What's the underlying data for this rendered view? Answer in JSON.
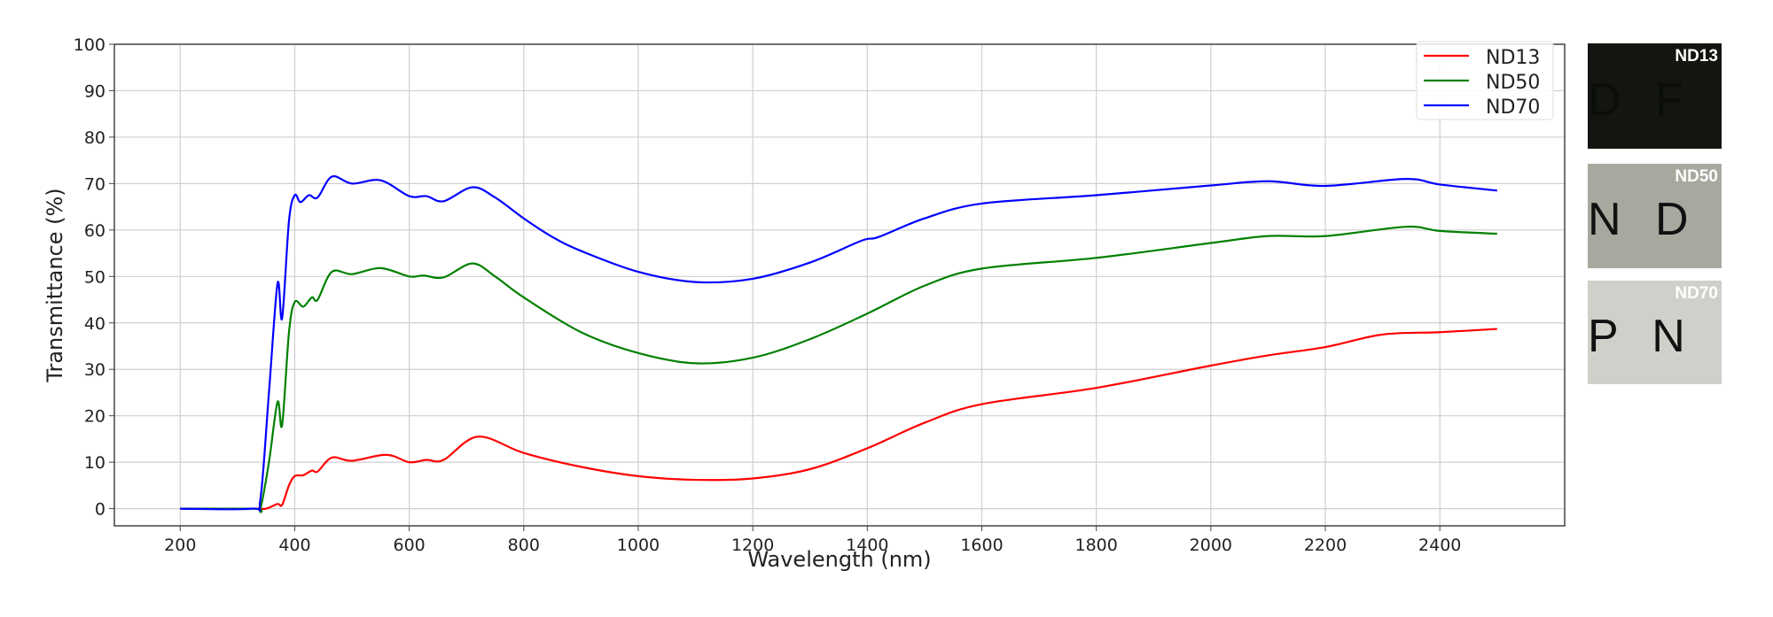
{
  "chart_data": {
    "type": "line",
    "title": "",
    "xlabel": "Wavelength (nm)",
    "ylabel": "Transmittance (%)",
    "xlim": [
      85,
      2618
    ],
    "ylim": [
      -3.7,
      100
    ],
    "xticks": [
      200,
      400,
      600,
      800,
      1000,
      1200,
      1400,
      1600,
      1800,
      2000,
      2200,
      2400
    ],
    "yticks": [
      0,
      10,
      20,
      30,
      40,
      50,
      60,
      70,
      80,
      90,
      100
    ],
    "grid": true,
    "legend_position": "top-right",
    "series": [
      {
        "name": "ND13",
        "color": "#ff0000",
        "x": [
          200,
          330,
          350,
          370,
          378,
          390,
          400,
          415,
          430,
          440,
          465,
          500,
          560,
          600,
          630,
          660,
          720,
          800,
          900,
          1000,
          1100,
          1200,
          1300,
          1400,
          1500,
          1600,
          1800,
          2000,
          2100,
          2200,
          2300,
          2400,
          2500
        ],
        "y": [
          0,
          0,
          0,
          1,
          0.8,
          5,
          7,
          7.2,
          8.2,
          8,
          11,
          10.3,
          11.6,
          10,
          10.5,
          10.5,
          15.5,
          12,
          9,
          7,
          6.2,
          6.5,
          8.5,
          13,
          18.5,
          22.5,
          26,
          30.8,
          33,
          34.8,
          37.5,
          38,
          38.7
        ]
      },
      {
        "name": "ND50",
        "color": "#008000",
        "x": [
          200,
          330,
          340,
          355,
          370,
          378,
          390,
          400,
          415,
          430,
          440,
          465,
          500,
          550,
          600,
          625,
          660,
          710,
          750,
          800,
          900,
          1000,
          1100,
          1200,
          1300,
          1400,
          1500,
          1600,
          1800,
          2000,
          2100,
          2200,
          2340,
          2400,
          2500
        ],
        "y": [
          0,
          0,
          0,
          10,
          23,
          18,
          38,
          44.5,
          43.5,
          45.5,
          45,
          51,
          50.5,
          51.8,
          50,
          50.2,
          49.8,
          52.8,
          50,
          45.5,
          38,
          33.5,
          31.3,
          32.5,
          36.5,
          42,
          48,
          51.7,
          54,
          57.2,
          58.7,
          58.7,
          60.7,
          59.8,
          59.2
        ]
      },
      {
        "name": "ND70",
        "color": "#0000ff",
        "x": [
          200,
          325,
          340,
          355,
          370,
          378,
          390,
          400,
          410,
          425,
          440,
          465,
          500,
          550,
          600,
          630,
          660,
          710,
          750,
          800,
          850,
          900,
          1000,
          1100,
          1200,
          1300,
          1390,
          1420,
          1500,
          1600,
          1800,
          2000,
          2100,
          2200,
          2340,
          2400,
          2500
        ],
        "y": [
          0,
          0,
          2,
          25,
          48.5,
          41,
          62,
          67.5,
          66,
          67.5,
          67,
          71.5,
          70,
          70.7,
          67.3,
          67.3,
          66.2,
          69.2,
          67,
          62.5,
          58.5,
          55.5,
          51,
          48.8,
          49.5,
          53,
          57.7,
          58.5,
          62.5,
          65.7,
          67.5,
          69.6,
          70.5,
          69.5,
          71,
          69.8,
          68.5
        ]
      }
    ]
  },
  "photos": [
    {
      "label": "ND13",
      "letters": "D F P",
      "bg": "#121510",
      "fg": "#0b0d0a"
    },
    {
      "label": "ND50",
      "letters": "N D F",
      "bg": "#a7a99e",
      "fg": "#111111"
    },
    {
      "label": "ND70",
      "letters": "P N D",
      "bg": "#cfd0c9",
      "fg": "#111111"
    }
  ]
}
